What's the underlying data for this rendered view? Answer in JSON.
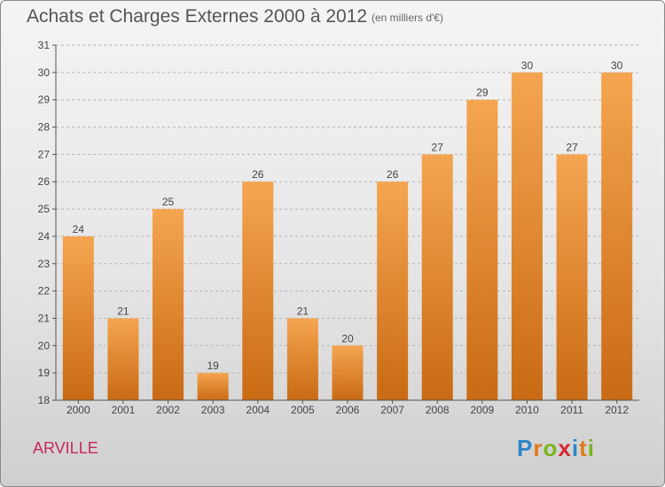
{
  "title": "Achats et Charges Externes 2000 à 2012",
  "subtitle": "(en milliers d'€)",
  "place": "ARVILLE",
  "logo": {
    "letters": [
      "P",
      "r",
      "o",
      "x",
      "i",
      "t",
      "i"
    ],
    "colors": [
      "#2e86c8",
      "#e07a1a",
      "#7ab51d",
      "#d8262e",
      "#2e86c8",
      "#e07a1a",
      "#7ab51d"
    ]
  },
  "colors": {
    "bar_light": "#f5a550",
    "bar_dark": "#c96a14",
    "axis": "#555555",
    "grid": "#b5b5b5"
  },
  "chart_data": {
    "type": "bar",
    "title": "Achats et Charges Externes 2000 à 2012",
    "subtitle": "(en milliers d'€)",
    "categories": [
      "2000",
      "2001",
      "2002",
      "2003",
      "2004",
      "2005",
      "2006",
      "2007",
      "2008",
      "2009",
      "2010",
      "2011",
      "2012"
    ],
    "values": [
      24,
      21,
      25,
      19,
      26,
      21,
      20,
      26,
      27,
      29,
      30,
      27,
      30
    ],
    "ylim": [
      18,
      31
    ],
    "yticks": [
      18,
      19,
      20,
      21,
      22,
      23,
      24,
      25,
      26,
      27,
      28,
      29,
      30,
      31
    ],
    "grid": true,
    "data_labels": true,
    "xlabel": "",
    "ylabel": ""
  }
}
